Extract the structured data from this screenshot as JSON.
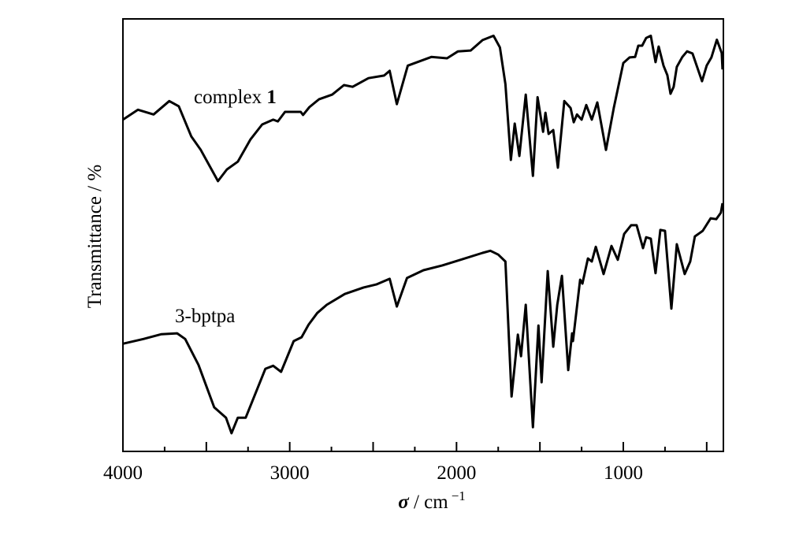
{
  "chart_data": {
    "type": "line",
    "title": "",
    "xlabel": {
      "symbol": "σ",
      "unit": " / cm",
      "exponent": "−1"
    },
    "ylabel": "Transmittance / %",
    "xlim": [
      4000,
      400
    ],
    "ylim": [
      0,
      100
    ],
    "y_units": "arbitrary (offset spectra, no y ticks)",
    "grid": false,
    "x_ticks": [
      4000,
      3000,
      2000,
      1000
    ],
    "x_tick_labels": [
      "4000",
      "3000",
      "2000",
      "1000"
    ],
    "x_minor_step": 250,
    "x_major_step": 500,
    "series": [
      {
        "name": "complex 1",
        "label_main": "complex ",
        "label_bold": "1",
        "color": "#000000",
        "points": [
          [
            4000,
            76.7
          ],
          [
            3910,
            79.0
          ],
          [
            3816,
            77.9
          ],
          [
            3722,
            81.0
          ],
          [
            3665,
            79.8
          ],
          [
            3590,
            72.8
          ],
          [
            3533,
            69.7
          ],
          [
            3430,
            62.5
          ],
          [
            3377,
            65.2
          ],
          [
            3311,
            67.0
          ],
          [
            3236,
            72.1
          ],
          [
            3165,
            75.6
          ],
          [
            3099,
            76.7
          ],
          [
            3071,
            76.3
          ],
          [
            3028,
            78.5
          ],
          [
            2934,
            78.5
          ],
          [
            2920,
            77.8
          ],
          [
            2882,
            79.6
          ],
          [
            2825,
            81.4
          ],
          [
            2745,
            82.5
          ],
          [
            2675,
            84.7
          ],
          [
            2623,
            84.3
          ],
          [
            2528,
            86.3
          ],
          [
            2434,
            86.9
          ],
          [
            2401,
            88.0
          ],
          [
            2358,
            80.3
          ],
          [
            2292,
            89.2
          ],
          [
            2151,
            91.2
          ],
          [
            2057,
            90.9
          ],
          [
            1991,
            92.5
          ],
          [
            1915,
            92.7
          ],
          [
            1844,
            95.1
          ],
          [
            1778,
            96.1
          ],
          [
            1740,
            93.4
          ],
          [
            1707,
            84.9
          ],
          [
            1674,
            67.4
          ],
          [
            1651,
            75.8
          ],
          [
            1623,
            68.3
          ],
          [
            1585,
            82.5
          ],
          [
            1542,
            63.7
          ],
          [
            1514,
            81.9
          ],
          [
            1481,
            73.9
          ],
          [
            1467,
            78.3
          ],
          [
            1448,
            73.4
          ],
          [
            1420,
            74.3
          ],
          [
            1392,
            65.6
          ],
          [
            1354,
            81.0
          ],
          [
            1316,
            79.4
          ],
          [
            1297,
            76.1
          ],
          [
            1278,
            77.9
          ],
          [
            1250,
            76.7
          ],
          [
            1222,
            80.1
          ],
          [
            1189,
            76.7
          ],
          [
            1156,
            80.7
          ],
          [
            1104,
            69.7
          ],
          [
            1057,
            79.4
          ],
          [
            1000,
            89.8
          ],
          [
            962,
            91.1
          ],
          [
            929,
            91.2
          ],
          [
            910,
            93.8
          ],
          [
            887,
            93.8
          ],
          [
            863,
            95.6
          ],
          [
            835,
            96.1
          ],
          [
            807,
            90.0
          ],
          [
            788,
            93.6
          ],
          [
            759,
            89.2
          ],
          [
            736,
            87.0
          ],
          [
            717,
            82.7
          ],
          [
            698,
            84.3
          ],
          [
            679,
            88.9
          ],
          [
            646,
            91.2
          ],
          [
            618,
            92.5
          ],
          [
            585,
            92.0
          ],
          [
            528,
            85.6
          ],
          [
            500,
            89.2
          ],
          [
            472,
            91.1
          ],
          [
            439,
            95.2
          ],
          [
            410,
            92.1
          ],
          [
            405,
            88.3
          ]
        ]
      },
      {
        "name": "3-bptpa",
        "label_main": "3-bptpa",
        "label_bold": "",
        "color": "#000000",
        "points": [
          [
            4000,
            24.9
          ],
          [
            3877,
            26.0
          ],
          [
            3769,
            27.1
          ],
          [
            3675,
            27.3
          ],
          [
            3627,
            26.0
          ],
          [
            3547,
            20.0
          ],
          [
            3453,
            10.2
          ],
          [
            3382,
            7.8
          ],
          [
            3349,
            4.2
          ],
          [
            3311,
            7.8
          ],
          [
            3264,
            7.8
          ],
          [
            3146,
            19.1
          ],
          [
            3099,
            19.8
          ],
          [
            3052,
            18.4
          ],
          [
            2976,
            25.5
          ],
          [
            2929,
            26.4
          ],
          [
            2887,
            29.3
          ],
          [
            2835,
            32.0
          ],
          [
            2778,
            33.9
          ],
          [
            2670,
            36.4
          ],
          [
            2557,
            37.9
          ],
          [
            2481,
            38.6
          ],
          [
            2401,
            39.9
          ],
          [
            2358,
            33.5
          ],
          [
            2297,
            40.1
          ],
          [
            2198,
            41.9
          ],
          [
            2085,
            43.0
          ],
          [
            1967,
            44.4
          ],
          [
            1844,
            45.9
          ],
          [
            1797,
            46.4
          ],
          [
            1750,
            45.5
          ],
          [
            1707,
            43.9
          ],
          [
            1670,
            12.7
          ],
          [
            1632,
            27.0
          ],
          [
            1613,
            22.0
          ],
          [
            1585,
            33.9
          ],
          [
            1542,
            5.6
          ],
          [
            1509,
            29.1
          ],
          [
            1490,
            16.0
          ],
          [
            1453,
            41.7
          ],
          [
            1420,
            24.2
          ],
          [
            1396,
            33.9
          ],
          [
            1368,
            40.6
          ],
          [
            1330,
            18.8
          ],
          [
            1307,
            27.3
          ],
          [
            1302,
            25.5
          ],
          [
            1259,
            39.7
          ],
          [
            1245,
            38.8
          ],
          [
            1212,
            44.6
          ],
          [
            1189,
            43.9
          ],
          [
            1165,
            47.3
          ],
          [
            1118,
            41.0
          ],
          [
            1071,
            47.5
          ],
          [
            1033,
            44.3
          ],
          [
            995,
            50.3
          ],
          [
            953,
            52.3
          ],
          [
            920,
            52.3
          ],
          [
            882,
            47.0
          ],
          [
            863,
            49.5
          ],
          [
            835,
            49.2
          ],
          [
            807,
            41.2
          ],
          [
            778,
            51.2
          ],
          [
            750,
            51.0
          ],
          [
            712,
            33.0
          ],
          [
            679,
            47.9
          ],
          [
            632,
            41.0
          ],
          [
            599,
            43.9
          ],
          [
            571,
            49.7
          ],
          [
            524,
            51.0
          ],
          [
            476,
            53.9
          ],
          [
            443,
            53.7
          ],
          [
            415,
            55.2
          ],
          [
            405,
            57.4
          ]
        ]
      }
    ]
  }
}
